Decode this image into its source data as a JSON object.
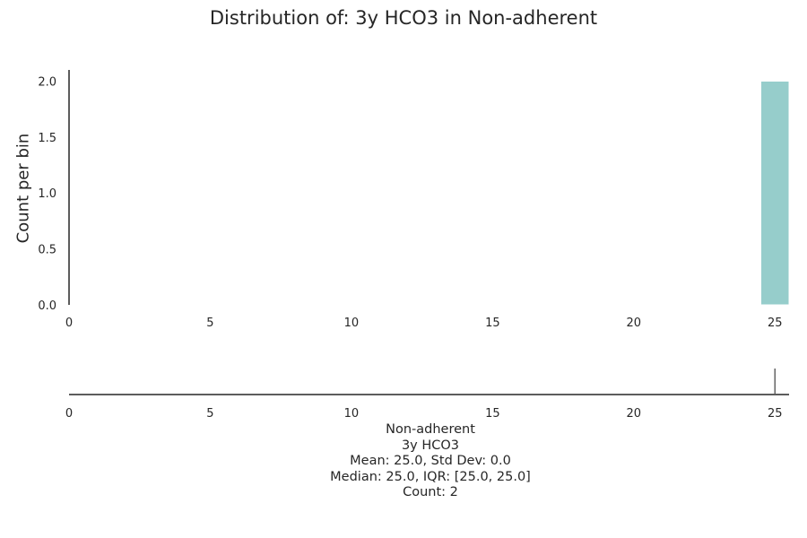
{
  "chart_data": {
    "type": "bar",
    "title": "Distribution of: 3y HCO3 in Non-adherent",
    "ylabel": "Count per bin",
    "xlabel": "",
    "xlim": [
      0,
      25.5
    ],
    "ylim": [
      0,
      2.1
    ],
    "x_ticks": [
      "0",
      "5",
      "10",
      "15",
      "20",
      "25"
    ],
    "y_ticks": [
      "0.0",
      "0.5",
      "1.0",
      "1.5",
      "2.0"
    ],
    "bins": [
      {
        "x_start": 24.5,
        "x_end": 25.5,
        "count": 2
      }
    ],
    "rug": {
      "values": [
        25,
        25
      ]
    },
    "grid": false,
    "colors": {
      "bar": "#96cdcb",
      "axis": "#262626",
      "rug": "#555555"
    }
  },
  "stats": {
    "group": "Non-adherent",
    "variable": "3y HCO3",
    "mean_line": "Mean: 25.0, Std Dev: 0.0",
    "median_line": "Median: 25.0, IQR: [25.0, 25.0]",
    "count_line": "Count: 2"
  }
}
